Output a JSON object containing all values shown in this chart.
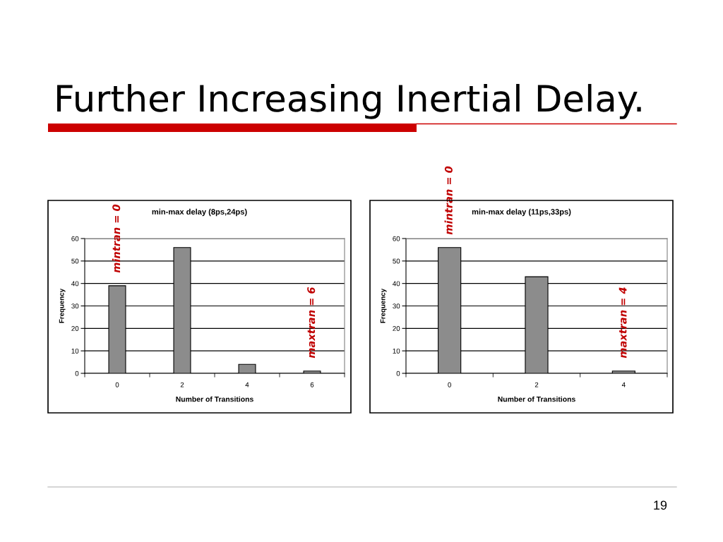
{
  "chart_data": [
    {
      "type": "other",
      "title": "Further Increasing Inertial Delay.",
      "annotations": [
        "19"
      ]
    },
    {
      "type": "bar",
      "title": "min-max delay (8ps,24ps)",
      "xlabel": "Number of Transitions",
      "ylabel": "Frequency",
      "categories": [
        "0",
        "2",
        "4",
        "6"
      ],
      "values": [
        39,
        56,
        4,
        1
      ],
      "color": "#8c8c8c",
      "ylim": [
        0,
        60
      ],
      "yticks": [
        0,
        10,
        20,
        30,
        40,
        50,
        60
      ],
      "grid": "y",
      "annotations": [
        {
          "text": "mintran = 0",
          "x": "0",
          "y": 39
        },
        {
          "text": "maxtran = 6",
          "x": "6",
          "y": 1
        }
      ]
    },
    {
      "type": "bar",
      "title": "min-max delay (11ps,33ps)",
      "xlabel": "Number of Transitions",
      "ylabel": "Frequency",
      "categories": [
        "0",
        "2",
        "4"
      ],
      "values": [
        56,
        43,
        1
      ],
      "color": "#8c8c8c",
      "ylim": [
        0,
        60
      ],
      "yticks": [
        0,
        10,
        20,
        30,
        40,
        50,
        60
      ],
      "grid": "y",
      "annotations": [
        {
          "text": "mintran = 0",
          "x": "0",
          "y": 56
        },
        {
          "text": "maxtran = 4",
          "x": "4",
          "y": 1
        }
      ]
    }
  ]
}
